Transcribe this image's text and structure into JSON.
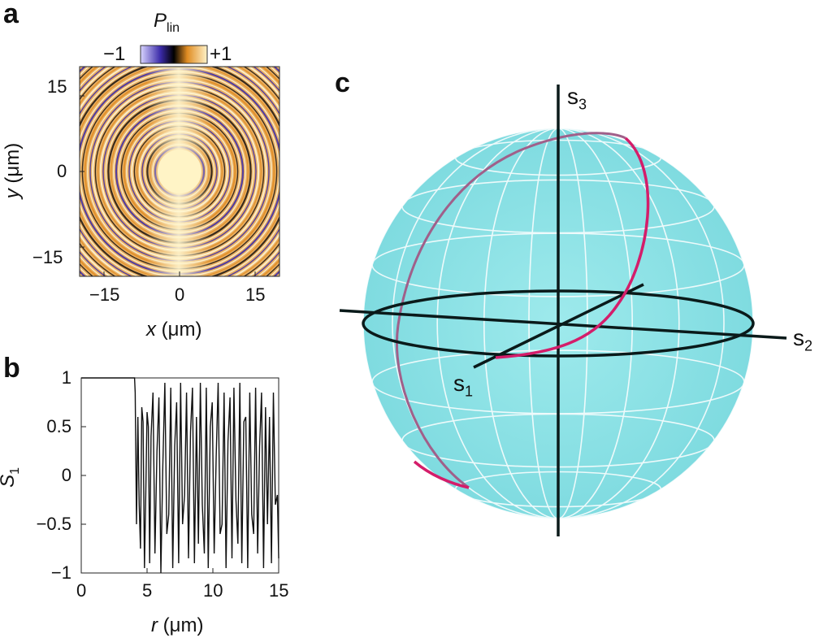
{
  "panels": {
    "a": {
      "letter": "a",
      "colorbar": {
        "title_main": "P",
        "title_sub": "lin",
        "min_label": "−1",
        "max_label": "+1"
      },
      "x_ticks": [
        "−15",
        "0",
        "15"
      ],
      "y_ticks": [
        "15",
        "0",
        "−15"
      ],
      "xlabel_var": "x",
      "xlabel_unit": "(μm)",
      "ylabel_var": "y",
      "ylabel_unit": "(μm)"
    },
    "b": {
      "letter": "b",
      "xlabel_var": "r",
      "xlabel_unit": "(μm)",
      "ylabel_main": "S",
      "ylabel_sub": "1"
    },
    "c": {
      "letter": "c",
      "axes": {
        "s1_main": "s",
        "s1_sub": "1",
        "s2_main": "s",
        "s2_sub": "2",
        "s3_main": "s",
        "s3_sub": "3"
      }
    }
  },
  "colors": {
    "map_orange": "#e08c22",
    "map_blue": "#3a2aa8",
    "map_light": "#fff7d6",
    "sphere_fill": "#8fe3e6",
    "sphere_grid": "#ffffff",
    "trajectory": "#d41d6a",
    "trajectory_back": "#a0608a",
    "axis": "#0a1a1a"
  },
  "chart_data": {
    "type": "line",
    "title": "",
    "xlabel": "r (μm)",
    "ylabel": "S1",
    "xlim": [
      0,
      15
    ],
    "ylim": [
      -1,
      1
    ],
    "x_ticks": [
      0,
      5,
      10,
      15
    ],
    "y_ticks": [
      -1,
      -0.5,
      0,
      0.5,
      1
    ],
    "x_tick_labels": [
      "0",
      "5",
      "10",
      "15"
    ],
    "y_tick_labels": [
      "−1",
      "−0.5",
      "0",
      "0.5",
      "1"
    ],
    "grid": false,
    "series": [
      {
        "x": [
          0,
          4.0,
          4.05,
          4.1,
          4.2,
          4.3,
          4.4,
          4.5,
          4.6,
          4.7,
          4.8,
          4.9,
          5.0,
          5.1,
          5.2,
          5.3,
          5.45,
          5.6,
          5.75,
          5.9,
          6.05,
          6.2,
          6.35,
          6.5,
          6.65,
          6.8,
          6.95,
          7.1,
          7.25,
          7.4,
          7.55,
          7.7,
          7.85,
          8.0,
          8.15,
          8.3,
          8.45,
          8.6,
          8.75,
          8.9,
          9.05,
          9.2,
          9.35,
          9.5,
          9.65,
          9.8,
          9.95,
          10.1,
          10.25,
          10.4,
          10.55,
          10.7,
          10.85,
          11.0,
          11.15,
          11.3,
          11.45,
          11.6,
          11.75,
          11.9,
          12.05,
          12.2,
          12.35,
          12.5,
          12.65,
          12.8,
          12.95,
          13.1,
          13.25,
          13.4,
          13.55,
          13.7,
          13.85,
          14.0,
          14.15,
          14.3,
          14.45,
          14.6,
          14.75,
          14.9,
          15.0
        ],
        "values": [
          1,
          1,
          1,
          0.85,
          -0.5,
          0.6,
          -0.3,
          -0.75,
          0.7,
          0.55,
          -0.95,
          -0.2,
          0.65,
          0.5,
          -0.9,
          0.4,
          0.85,
          -0.8,
          0.25,
          0.8,
          -1.0,
          0.1,
          0.95,
          -0.6,
          -0.4,
          0.9,
          -0.95,
          0.3,
          0.75,
          -0.9,
          0.95,
          -0.5,
          -0.2,
          0.85,
          -0.85,
          0.45,
          0.9,
          -0.9,
          0.6,
          -0.7,
          0.95,
          -0.3,
          -0.8,
          0.9,
          -0.95,
          0.5,
          0.75,
          -0.8,
          0.2,
          0.95,
          -0.6,
          -0.5,
          0.85,
          -0.95,
          0.35,
          0.8,
          -0.85,
          0.9,
          -0.25,
          -0.7,
          0.95,
          -0.9,
          0.55,
          0.6,
          -0.95,
          0.85,
          -0.4,
          -0.6,
          0.9,
          -0.8,
          0.3,
          0.85,
          -0.95,
          0.7,
          -0.5,
          0.6,
          -0.9,
          0.85,
          -0.3,
          -0.2,
          -0.85
        ]
      }
    ]
  }
}
